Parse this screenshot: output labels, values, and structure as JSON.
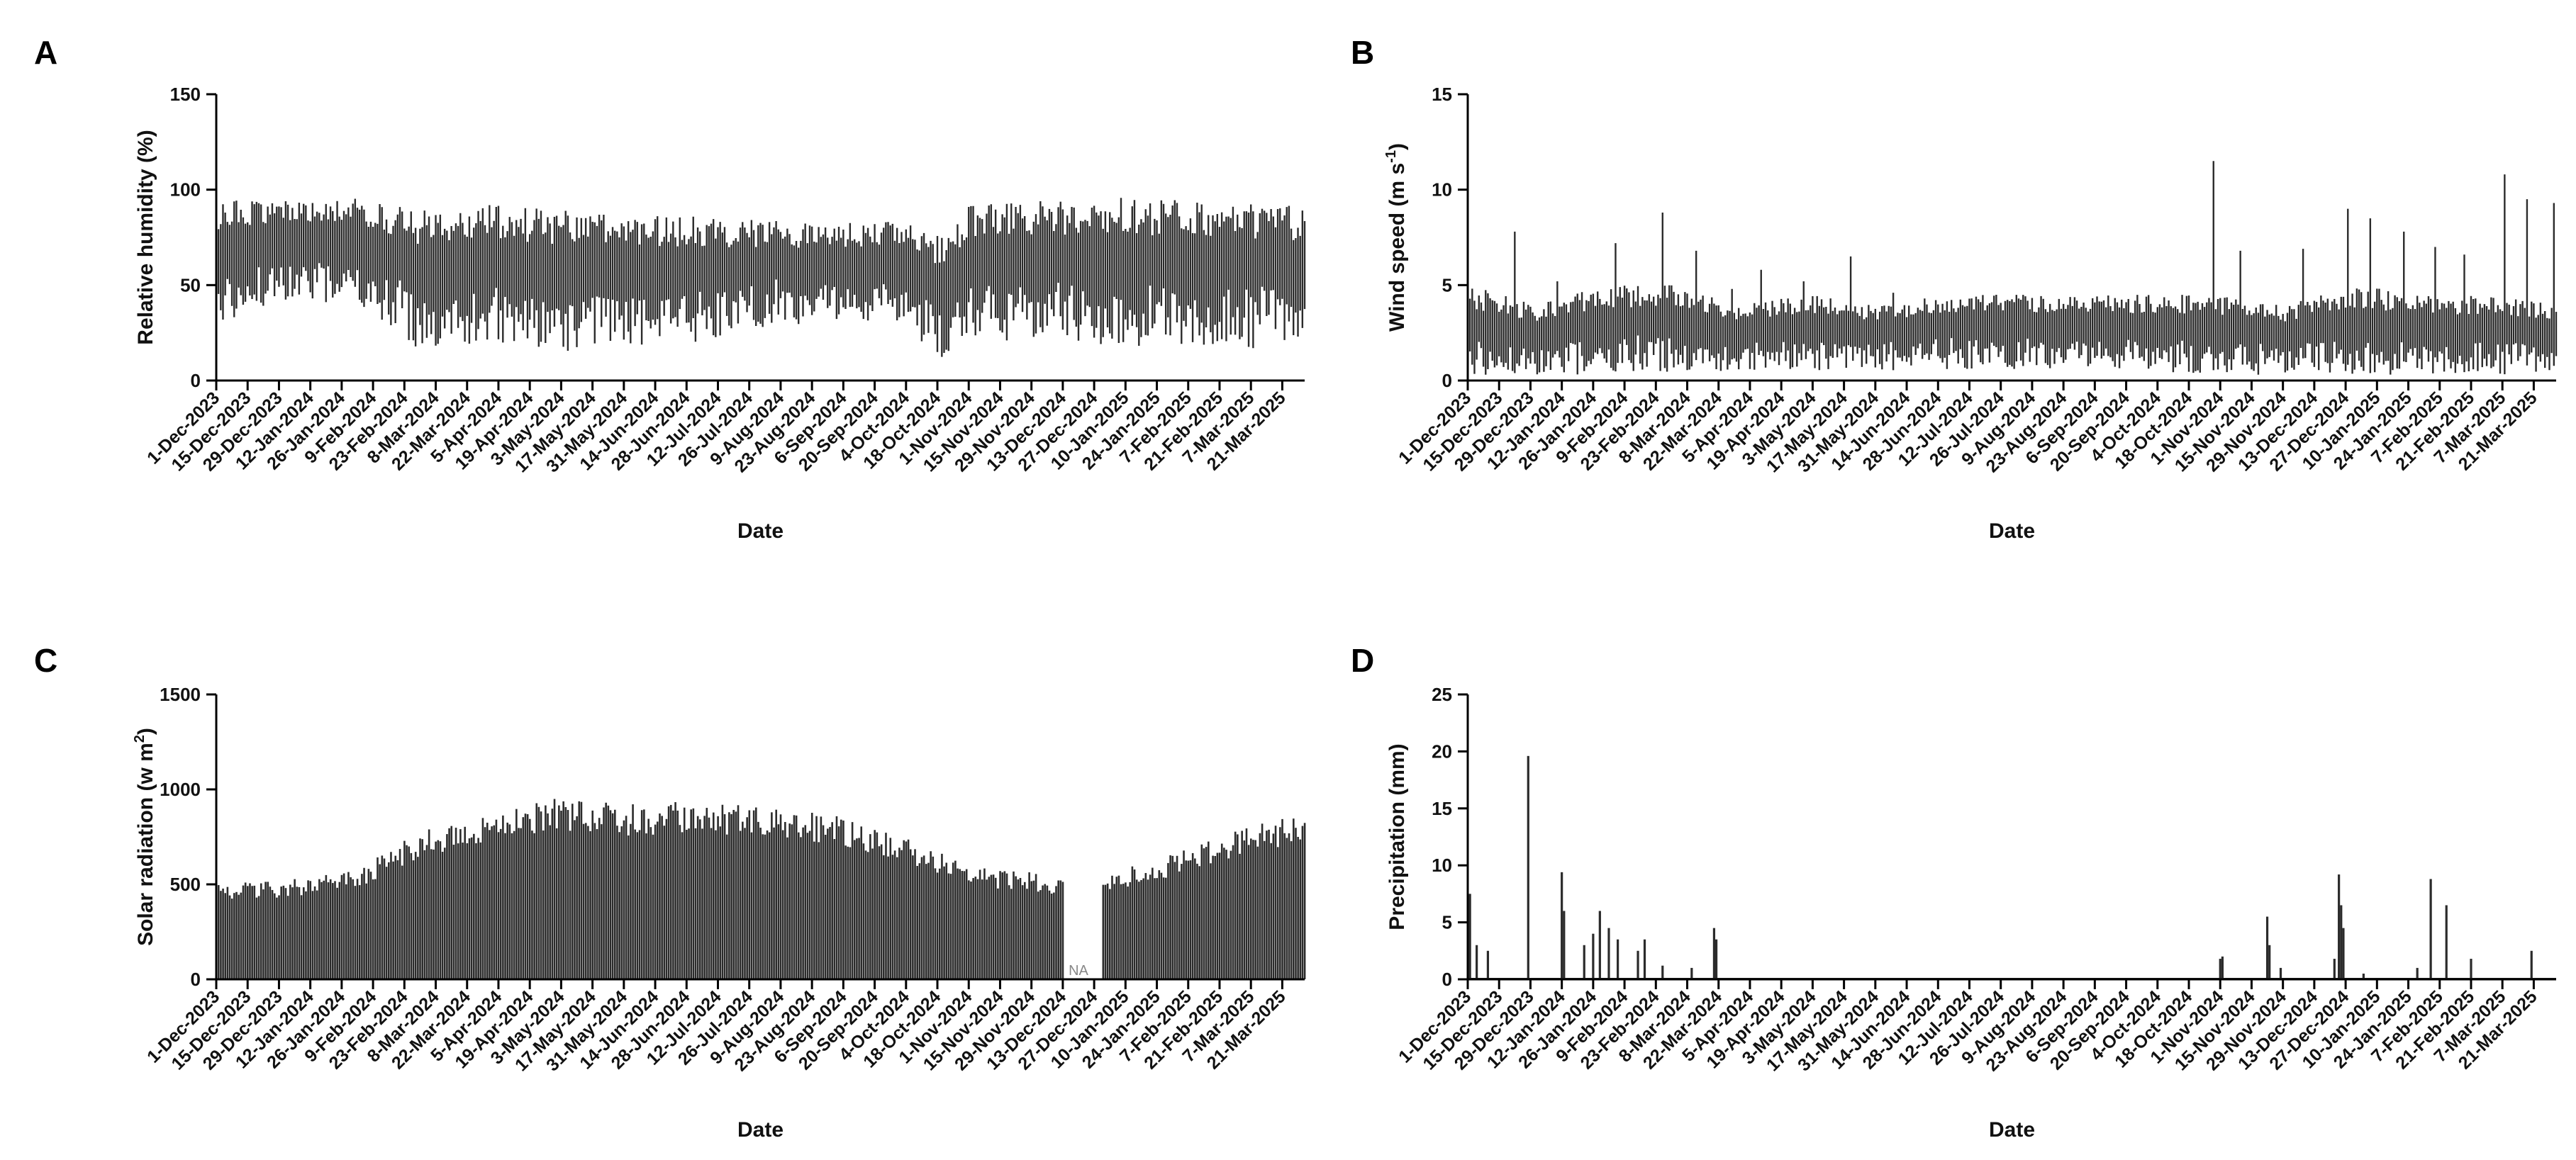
{
  "chart_data": [
    {
      "panel": "A",
      "type": "line",
      "title": "",
      "xlabel": "Date",
      "ylabel": "Relative humidity (%)",
      "ylim": [
        0,
        150
      ],
      "yticks": [
        0,
        50,
        100,
        150
      ],
      "xlim": [
        "2023-12-01",
        "2025-03-31"
      ],
      "xtick_labels": [
        "1-Dec-2023",
        "15-Dec-2023",
        "29-Dec-2023",
        "12-Jan-2024",
        "26-Jan-2024",
        "9-Feb-2024",
        "23-Feb-2024",
        "8-Mar-2024",
        "22-Mar-2024",
        "5-Apr-2024",
        "19-Apr-2024",
        "3-May-2024",
        "17-May-2024",
        "31-May-2024",
        "14-Jun-2024",
        "28-Jun-2024",
        "12-Jul-2024",
        "26-Jul-2024",
        "9-Aug-2024",
        "23-Aug-2024",
        "6-Sep-2024",
        "20-Sep-2024",
        "4-Oct-2024",
        "18-Oct-2024",
        "1-Nov-2024",
        "15-Nov-2024",
        "29-Nov-2024",
        "13-Dec-2024",
        "27-Dec-2024",
        "10-Jan-2025",
        "24-Jan-2025",
        "7-Feb-2025",
        "21-Feb-2025",
        "7-Mar-2025",
        "21-Mar-2025"
      ],
      "grid": false,
      "series": [
        {
          "envelope_max": {
            "x": [
              "2023-12-01",
              "2024-01-01",
              "2024-02-01",
              "2024-03-01",
              "2024-04-01",
              "2024-05-01",
              "2024-06-01",
              "2024-07-01",
              "2024-08-01",
              "2024-09-01",
              "2024-10-01",
              "2024-10-20",
              "2024-11-01",
              "2024-12-01",
              "2025-01-01",
              "2025-02-01",
              "2025-03-01",
              "2025-03-31"
            ],
            "y": [
              95,
              96,
              96,
              90,
              92,
              90,
              87,
              86,
              84,
              82,
              85,
              75,
              92,
              95,
              96,
              95,
              93,
              92
            ]
          },
          "envelope_min": {
            "x": [
              "2023-12-01",
              "2024-01-01",
              "2024-02-01",
              "2024-03-01",
              "2024-04-01",
              "2024-05-01",
              "2024-06-01",
              "2024-07-01",
              "2024-08-01",
              "2024-09-01",
              "2024-10-01",
              "2024-10-20",
              "2024-11-01",
              "2024-12-01",
              "2025-01-01",
              "2025-02-01",
              "2025-03-01",
              "2025-03-31"
            ],
            "y": [
              30,
              42,
              40,
              15,
              20,
              14,
              18,
              20,
              28,
              30,
              30,
              12,
              22,
              20,
              18,
              18,
              16,
              18
            ]
          }
        }
      ]
    },
    {
      "panel": "B",
      "type": "line",
      "title": "",
      "xlabel": "Date",
      "ylabel": "Wind speed (m s-1)",
      "ylabel_base": "Wind speed (m s",
      "ylabel_sup": "-1",
      "ylabel_close": ")",
      "ylim": [
        0,
        15
      ],
      "yticks": [
        0,
        5,
        10,
        15
      ],
      "xlim": [
        "2023-12-01",
        "2025-03-31"
      ],
      "xtick_labels": [
        "1-Dec-2023",
        "15-Dec-2023",
        "29-Dec-2023",
        "12-Jan-2024",
        "26-Jan-2024",
        "9-Feb-2024",
        "23-Feb-2024",
        "8-Mar-2024",
        "22-Mar-2024",
        "5-Apr-2024",
        "19-Apr-2024",
        "3-May-2024",
        "17-May-2024",
        "31-May-2024",
        "14-Jun-2024",
        "28-Jun-2024",
        "12-Jul-2024",
        "26-Jul-2024",
        "9-Aug-2024",
        "23-Aug-2024",
        "6-Sep-2024",
        "20-Sep-2024",
        "4-Oct-2024",
        "18-Oct-2024",
        "1-Nov-2024",
        "15-Nov-2024",
        "29-Nov-2024",
        "13-Dec-2024",
        "27-Dec-2024",
        "10-Jan-2025",
        "24-Jan-2025",
        "7-Feb-2025",
        "21-Feb-2025",
        "7-Mar-2025",
        "21-Mar-2025"
      ],
      "grid": false,
      "series": [
        {
          "envelope_max": {
            "x": [
              "2023-12-01",
              "2024-01-01",
              "2024-02-01",
              "2024-03-01",
              "2024-04-01",
              "2024-05-01",
              "2024-06-01",
              "2024-07-01",
              "2024-08-01",
              "2024-09-01",
              "2024-10-01",
              "2024-11-01",
              "2024-12-01",
              "2025-01-01",
              "2025-02-01",
              "2025-03-01",
              "2025-03-31"
            ],
            "y": [
              5,
              4,
              5,
              5,
              4,
              4.5,
              4,
              4.5,
              4.5,
              4.5,
              4.5,
              4.5,
              4,
              5,
              4.5,
              4.5,
              4
            ]
          },
          "envelope_min": {
            "x": [
              "2023-12-01",
              "2024-01-01",
              "2024-02-01",
              "2024-03-01",
              "2024-04-01",
              "2024-05-01",
              "2024-06-01",
              "2024-07-01",
              "2024-08-01",
              "2024-09-01",
              "2024-10-01",
              "2024-11-01",
              "2024-12-01",
              "2025-01-01",
              "2025-02-01",
              "2025-03-01",
              "2025-03-31"
            ],
            "y": [
              0.3,
              0.3,
              0.3,
              0.4,
              0.5,
              0.5,
              0.5,
              0.6,
              0.6,
              0.6,
              0.5,
              0.3,
              0.3,
              0.3,
              0.3,
              0.3,
              0.3
            ]
          },
          "spikes": {
            "x": [
              "2023-12-22",
              "2024-01-10",
              "2024-02-05",
              "2024-02-26",
              "2024-03-12",
              "2024-03-28",
              "2024-04-10",
              "2024-04-29",
              "2024-05-20",
              "2024-06-08",
              "2024-10-29",
              "2024-11-10",
              "2024-12-08",
              "2024-12-28",
              "2025-01-07",
              "2025-01-22",
              "2025-02-05",
              "2025-02-18",
              "2025-03-08",
              "2025-03-18",
              "2025-03-30"
            ],
            "y": [
              7.8,
              5.2,
              7.2,
              8.8,
              6.8,
              4.8,
              5.8,
              5.2,
              6.5,
              4.6,
              11.5,
              6.8,
              6.9,
              9.0,
              8.5,
              7.8,
              7.0,
              6.6,
              10.8,
              9.5,
              9.3
            ]
          }
        }
      ]
    },
    {
      "panel": "C",
      "type": "bar",
      "title": "",
      "xlabel": "Date",
      "ylabel": "Solar radiation (w m2)",
      "ylabel_base": "Solar radiation (w m",
      "ylabel_sup": "2",
      "ylabel_close": ")",
      "ylim": [
        0,
        1500
      ],
      "yticks": [
        0,
        500,
        1000,
        1500
      ],
      "xlim": [
        "2023-12-01",
        "2025-03-31"
      ],
      "xtick_labels": [
        "1-Dec-2023",
        "15-Dec-2023",
        "29-Dec-2023",
        "12-Jan-2024",
        "26-Jan-2024",
        "9-Feb-2024",
        "23-Feb-2024",
        "8-Mar-2024",
        "22-Mar-2024",
        "5-Apr-2024",
        "19-Apr-2024",
        "3-May-2024",
        "17-May-2024",
        "31-May-2024",
        "14-Jun-2024",
        "28-Jun-2024",
        "12-Jul-2024",
        "26-Jul-2024",
        "9-Aug-2024",
        "23-Aug-2024",
        "6-Sep-2024",
        "20-Sep-2024",
        "4-Oct-2024",
        "18-Oct-2024",
        "1-Nov-2024",
        "15-Nov-2024",
        "29-Nov-2024",
        "13-Dec-2024",
        "27-Dec-2024",
        "10-Jan-2025",
        "24-Jan-2025",
        "7-Feb-2025",
        "21-Feb-2025",
        "7-Mar-2025",
        "21-Mar-2025"
      ],
      "grid": false,
      "annotations": [
        {
          "text": "NA",
          "x": "2024-12-20",
          "y": 20
        }
      ],
      "missing_range": [
        "2024-12-13",
        "2024-12-31"
      ],
      "series": [
        {
          "daily_max": {
            "x": [
              "2023-12-01",
              "2024-01-01",
              "2024-02-01",
              "2024-03-01",
              "2024-04-01",
              "2024-05-01",
              "2024-06-01",
              "2024-07-01",
              "2024-08-01",
              "2024-09-01",
              "2024-10-01",
              "2024-11-01",
              "2024-12-01",
              "2024-12-12",
              "2025-01-01",
              "2025-02-01",
              "2025-03-01",
              "2025-03-31"
            ],
            "y": [
              510,
              520,
              580,
              780,
              880,
              960,
              920,
              940,
              910,
              870,
              760,
              600,
              560,
              540,
              560,
              660,
              790,
              880
            ]
          }
        }
      ]
    },
    {
      "panel": "D",
      "type": "bar",
      "title": "",
      "xlabel": "Date",
      "ylabel": "Precipitation (mm)",
      "ylim": [
        0,
        25
      ],
      "yticks": [
        0,
        5,
        10,
        15,
        20,
        25
      ],
      "xlim": [
        "2023-12-01",
        "2025-03-31"
      ],
      "xtick_labels": [
        "1-Dec-2023",
        "15-Dec-2023",
        "29-Dec-2023",
        "12-Jan-2024",
        "26-Jan-2024",
        "9-Feb-2024",
        "23-Feb-2024",
        "8-Mar-2024",
        "22-Mar-2024",
        "5-Apr-2024",
        "19-Apr-2024",
        "3-May-2024",
        "17-May-2024",
        "31-May-2024",
        "14-Jun-2024",
        "28-Jun-2024",
        "12-Jul-2024",
        "26-Jul-2024",
        "9-Aug-2024",
        "23-Aug-2024",
        "6-Sep-2024",
        "20-Sep-2024",
        "4-Oct-2024",
        "18-Oct-2024",
        "1-Nov-2024",
        "15-Nov-2024",
        "29-Nov-2024",
        "13-Dec-2024",
        "27-Dec-2024",
        "10-Jan-2025",
        "24-Jan-2025",
        "7-Feb-2025",
        "21-Feb-2025",
        "7-Mar-2025",
        "21-Mar-2025"
      ],
      "grid": false,
      "series": [
        {
          "x": [
            "2023-12-02",
            "2023-12-05",
            "2023-12-10",
            "2023-12-28",
            "2024-01-12",
            "2024-01-13",
            "2024-01-22",
            "2024-01-26",
            "2024-01-29",
            "2024-02-02",
            "2024-02-06",
            "2024-02-15",
            "2024-02-18",
            "2024-02-26",
            "2024-03-10",
            "2024-03-20",
            "2024-03-21",
            "2024-11-01",
            "2024-11-02",
            "2024-11-22",
            "2024-11-23",
            "2024-11-28",
            "2024-12-22",
            "2024-12-24",
            "2024-12-25",
            "2024-12-26",
            "2025-01-04",
            "2025-01-28",
            "2025-02-03",
            "2025-02-10",
            "2025-02-21",
            "2025-03-20"
          ],
          "values": [
            7.5,
            3.0,
            2.5,
            19.6,
            9.4,
            6.0,
            3.0,
            4.0,
            6.0,
            4.5,
            3.5,
            2.5,
            3.5,
            1.2,
            1.0,
            4.5,
            3.5,
            1.8,
            2.0,
            5.5,
            3.0,
            1.0,
            1.8,
            9.2,
            6.5,
            4.5,
            0.5,
            1.0,
            8.8,
            6.5,
            1.8,
            2.5
          ]
        }
      ]
    }
  ],
  "panels": [
    {
      "letter": "A"
    },
    {
      "letter": "B"
    },
    {
      "letter": "C"
    },
    {
      "letter": "D"
    }
  ],
  "colors": {
    "bar": "#2b2b2b",
    "axis": "#000000",
    "na_text": "#888888"
  }
}
